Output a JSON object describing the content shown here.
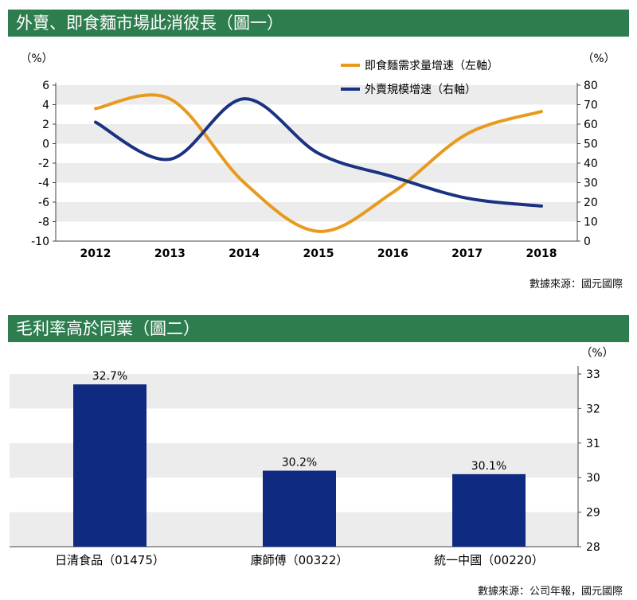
{
  "chart1": {
    "section_title": "外賣、即食麵市場此消彼長（圖一）",
    "source": "數據來源：國元國際",
    "chart_data": {
      "type": "line",
      "title": "外賣、即食麵市場此消彼長（圖一）",
      "x": [
        2012,
        2013,
        2014,
        2015,
        2016,
        2017,
        2018
      ],
      "left_unit": "（%）",
      "right_unit": "（%）",
      "ylim_left": [
        -10,
        6
      ],
      "left_ticks": [
        6,
        4,
        2,
        0,
        -2,
        -4,
        -6,
        -8,
        -10
      ],
      "ylim_right": [
        0,
        80
      ],
      "right_ticks": [
        80,
        70,
        60,
        50,
        40,
        30,
        20,
        10,
        0
      ],
      "series": [
        {
          "name": "即食麵需求量增速（左軸）",
          "axis": "left",
          "color": "#e89a1e",
          "values": [
            3.6,
            4.6,
            -4.0,
            -9.0,
            -5.0,
            1.0,
            3.3
          ]
        },
        {
          "name": "外賣規模增速（右軸）",
          "axis": "right",
          "color": "#1a3282",
          "values": [
            61,
            42,
            73,
            45,
            33,
            22,
            18
          ]
        }
      ]
    }
  },
  "chart2": {
    "section_title": "毛利率高於同業（圖二）",
    "source": "數據來源：公司年報，國元國際",
    "chart_data": {
      "type": "bar",
      "title": "毛利率高於同業（圖二）",
      "categories": [
        "日清食品（01475）",
        "康師傅（00322）",
        "統一中國（00220）"
      ],
      "values": [
        32.7,
        30.2,
        30.1
      ],
      "value_labels": [
        "32.7%",
        "30.2%",
        "30.1%"
      ],
      "unit": "（%）",
      "ylim": [
        28,
        33
      ],
      "ticks": [
        33,
        32,
        31,
        30,
        29,
        28
      ],
      "bar_color": "#0f2a80"
    }
  }
}
